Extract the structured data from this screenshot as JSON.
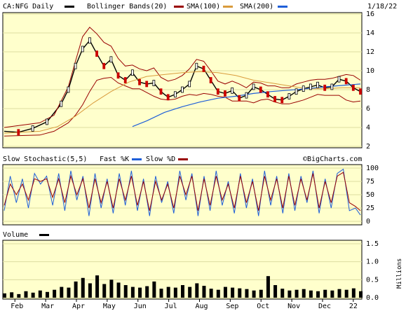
{
  "header": {
    "symbol_label": "CA:NFG Daily",
    "date": "1/18/22"
  },
  "colors": {
    "background": "#ffffcc",
    "grid": "#dcdca0",
    "price": "#000000",
    "candle_up": "#000000",
    "candle_down": "#cc0000",
    "bollinger": "#990000",
    "sma100": "#d99b3c",
    "sma200": "#1f5fd8",
    "stoch_fast": "#1f5fd8",
    "stoch_slow": "#990000",
    "volume": "#000000"
  },
  "chart_data": [
    {
      "type": "line",
      "panel": "price",
      "legend": [
        {
          "name": "Bollinger Bands(20)",
          "color": "#990000"
        },
        {
          "name": "SMA(100)",
          "color": "#d99b3c"
        },
        {
          "name": "SMA(200)",
          "color": "#1f5fd8"
        }
      ],
      "yticks": [
        "2",
        "4",
        "6",
        "8",
        "10",
        "12",
        "14",
        "16"
      ],
      "ylim": [
        2,
        16
      ],
      "grid": true,
      "x_labels": [
        "Feb",
        "Mar",
        "Apr",
        "May",
        "Jun",
        "Jul",
        "Aug",
        "Sep",
        "Oct",
        "Nov",
        "Dec",
        "22"
      ],
      "series": [
        {
          "name": "price",
          "key": "price",
          "x": [
            0,
            4,
            8,
            12,
            16,
            18,
            20,
            22,
            24,
            26,
            28,
            30,
            32,
            34,
            36,
            38,
            40,
            42,
            44,
            46,
            48,
            50,
            52,
            54,
            56,
            58,
            60,
            62,
            64,
            66,
            68,
            70,
            72,
            74,
            76,
            78,
            80,
            82,
            84,
            86,
            88,
            90,
            92,
            94,
            96,
            98,
            100
          ],
          "y": [
            3.6,
            3.5,
            3.9,
            4.6,
            6.5,
            8.0,
            10.5,
            12.3,
            13.2,
            11.8,
            10.5,
            11.2,
            9.5,
            9.0,
            9.8,
            8.8,
            8.6,
            8.7,
            7.8,
            7.2,
            7.5,
            8.0,
            8.6,
            10.5,
            10.2,
            9.0,
            7.8,
            7.6,
            7.9,
            7.1,
            7.4,
            8.3,
            8.0,
            7.5,
            7.0,
            6.9,
            7.3,
            7.8,
            8.1,
            8.3,
            8.5,
            8.2,
            8.3,
            9.1,
            8.9,
            8.2,
            7.8
          ]
        },
        {
          "name": "Bollinger Bands(20)",
          "key": "bb_upper",
          "x": [
            0,
            10,
            14,
            18,
            20,
            22,
            24,
            26,
            28,
            30,
            32,
            34,
            36,
            38,
            40,
            42,
            44,
            46,
            48,
            50,
            52,
            54,
            56,
            58,
            60,
            62,
            64,
            66,
            68,
            70,
            72,
            74,
            76,
            78,
            80,
            82,
            84,
            86,
            88,
            90,
            92,
            94,
            96,
            98,
            100
          ],
          "y": [
            4.0,
            4.5,
            5.3,
            8.3,
            11.0,
            13.6,
            14.6,
            13.9,
            13.0,
            12.6,
            11.3,
            10.5,
            10.6,
            10.2,
            10.0,
            10.3,
            9.3,
            8.9,
            9.1,
            9.5,
            10.2,
            11.2,
            11.0,
            10.0,
            8.9,
            8.6,
            8.9,
            8.6,
            8.2,
            8.8,
            8.7,
            8.4,
            8.4,
            8.2,
            8.2,
            8.6,
            8.8,
            9.0,
            9.1,
            9.1,
            9.2,
            9.4,
            9.6,
            9.5,
            9.0
          ]
        },
        {
          "name": "Bollinger Bands(20)",
          "key": "bb_lower",
          "x": [
            0,
            10,
            14,
            18,
            20,
            22,
            24,
            26,
            28,
            30,
            32,
            34,
            36,
            38,
            40,
            42,
            44,
            46,
            48,
            50,
            52,
            54,
            56,
            58,
            60,
            62,
            64,
            66,
            68,
            70,
            72,
            74,
            76,
            78,
            80,
            82,
            84,
            86,
            88,
            90,
            92,
            94,
            96,
            98,
            100
          ],
          "y": [
            3.1,
            3.2,
            3.6,
            4.5,
            5.3,
            6.4,
            7.8,
            9.0,
            9.2,
            9.3,
            8.7,
            8.4,
            8.1,
            8.1,
            7.7,
            7.3,
            7.0,
            6.9,
            7.0,
            7.3,
            7.5,
            7.4,
            7.6,
            7.5,
            7.3,
            7.2,
            6.8,
            6.8,
            6.8,
            6.6,
            6.9,
            7.0,
            6.7,
            6.5,
            6.5,
            6.7,
            6.9,
            7.2,
            7.5,
            7.4,
            7.4,
            7.4,
            6.9,
            6.7,
            6.8
          ]
        },
        {
          "name": "SMA(100)",
          "key": "sma100",
          "x": [
            0,
            10,
            15,
            20,
            25,
            30,
            35,
            40,
            45,
            50,
            55,
            60,
            65,
            70,
            75,
            80,
            85,
            90,
            95,
            100
          ],
          "y": [
            3.4,
            3.6,
            4.1,
            5.2,
            6.6,
            7.8,
            8.8,
            9.4,
            9.6,
            9.8,
            9.9,
            9.8,
            9.5,
            9.0,
            8.7,
            8.4,
            8.1,
            8.1,
            8.2,
            8.2
          ]
        },
        {
          "name": "SMA(200)",
          "key": "sma200",
          "x": [
            36,
            40,
            45,
            50,
            55,
            60,
            65,
            70,
            75,
            80,
            85,
            90,
            95,
            100
          ],
          "y": [
            4.1,
            4.7,
            5.6,
            6.2,
            6.7,
            7.1,
            7.3,
            7.6,
            7.8,
            7.95,
            8.1,
            8.3,
            8.45,
            8.6
          ]
        }
      ]
    },
    {
      "type": "line",
      "panel": "stochastic",
      "title": "Slow Stochastic(5,5)",
      "legend": [
        {
          "name": "Fast %K",
          "color": "#1f5fd8"
        },
        {
          "name": "Slow %D",
          "color": "#990000"
        }
      ],
      "yticks": [
        "0",
        "25",
        "50",
        "75",
        "100"
      ],
      "ylim": [
        0,
        100
      ],
      "series": [
        {
          "name": "Fast %K",
          "key": "fastk",
          "x": [
            0,
            1.7,
            3.4,
            5.1,
            6.8,
            8.5,
            10.2,
            11.9,
            13.6,
            15.3,
            17,
            18.7,
            20.4,
            22.1,
            23.8,
            25.5,
            27.2,
            28.9,
            30.6,
            32.3,
            34,
            35.7,
            37.4,
            39.1,
            40.8,
            42.5,
            44.2,
            45.9,
            47.6,
            49.3,
            51,
            52.7,
            54.4,
            56.1,
            57.8,
            59.5,
            61.2,
            62.9,
            64.6,
            66.3,
            68,
            69.7,
            71.4,
            73.1,
            74.8,
            76.5,
            78.2,
            79.9,
            81.6,
            83.3,
            85,
            86.7,
            88.4,
            90.1,
            91.8,
            93.5,
            95.2,
            96.9,
            98.6,
            100
          ],
          "y": [
            20,
            85,
            35,
            80,
            25,
            90,
            70,
            85,
            30,
            90,
            20,
            95,
            40,
            85,
            10,
            90,
            25,
            80,
            15,
            90,
            30,
            95,
            20,
            80,
            10,
            85,
            35,
            75,
            15,
            95,
            40,
            90,
            10,
            85,
            20,
            95,
            30,
            75,
            15,
            90,
            25,
            80,
            10,
            95,
            30,
            85,
            15,
            90,
            20,
            85,
            35,
            95,
            15,
            80,
            25,
            90,
            98,
            20,
            25,
            12
          ]
        },
        {
          "name": "Slow %D",
          "key": "slowd",
          "x": [
            0,
            1.7,
            3.4,
            5.1,
            6.8,
            8.5,
            10.2,
            11.9,
            13.6,
            15.3,
            17,
            18.7,
            20.4,
            22.1,
            23.8,
            25.5,
            27.2,
            28.9,
            30.6,
            32.3,
            34,
            35.7,
            37.4,
            39.1,
            40.8,
            42.5,
            44.2,
            45.9,
            47.6,
            49.3,
            51,
            52.7,
            54.4,
            56.1,
            57.8,
            59.5,
            61.2,
            62.9,
            64.6,
            66.3,
            68,
            69.7,
            71.4,
            73.1,
            74.8,
            76.5,
            78.2,
            79.9,
            81.6,
            83.3,
            85,
            86.7,
            88.4,
            90.1,
            91.8,
            93.5,
            95.2,
            96.9,
            98.6,
            100
          ],
          "y": [
            30,
            70,
            50,
            70,
            40,
            80,
            75,
            80,
            45,
            80,
            35,
            85,
            50,
            80,
            25,
            80,
            35,
            75,
            25,
            80,
            40,
            85,
            30,
            75,
            20,
            75,
            40,
            70,
            25,
            85,
            50,
            85,
            20,
            80,
            30,
            85,
            40,
            70,
            25,
            85,
            35,
            75,
            20,
            85,
            40,
            80,
            25,
            85,
            30,
            80,
            40,
            90,
            25,
            75,
            35,
            85,
            92,
            35,
            28,
            20
          ]
        }
      ]
    },
    {
      "type": "bar",
      "panel": "volume",
      "title": "Volume",
      "yticks": [
        "0.0",
        "0.5",
        "1.0",
        "1.5"
      ],
      "ylabel": "Millions",
      "ylim": [
        0,
        1.5
      ],
      "series": [
        {
          "name": "Volume",
          "key": "volume",
          "x": [
            0,
            2,
            4,
            6,
            8,
            10,
            12,
            14,
            16,
            18,
            20,
            22,
            24,
            26,
            28,
            30,
            32,
            34,
            36,
            38,
            40,
            42,
            44,
            46,
            48,
            50,
            52,
            54,
            56,
            58,
            60,
            62,
            64,
            66,
            68,
            70,
            72,
            74,
            76,
            78,
            80,
            82,
            84,
            86,
            88,
            90,
            92,
            94,
            96,
            98,
            100
          ],
          "values": [
            0.12,
            0.15,
            0.1,
            0.18,
            0.14,
            0.2,
            0.16,
            0.22,
            0.3,
            0.28,
            0.45,
            0.55,
            0.4,
            0.62,
            0.38,
            0.5,
            0.42,
            0.35,
            0.3,
            0.28,
            0.32,
            0.45,
            0.25,
            0.3,
            0.28,
            0.35,
            0.3,
            0.4,
            0.33,
            0.25,
            0.22,
            0.3,
            0.28,
            0.26,
            0.24,
            0.2,
            0.22,
            0.6,
            0.35,
            0.25,
            0.2,
            0.22,
            0.24,
            0.2,
            0.18,
            0.22,
            0.2,
            0.24,
            0.22,
            0.26,
            0.18
          ]
        }
      ]
    }
  ],
  "panels": {
    "stochastic": {
      "watermark": "©BigCharts.com"
    }
  }
}
